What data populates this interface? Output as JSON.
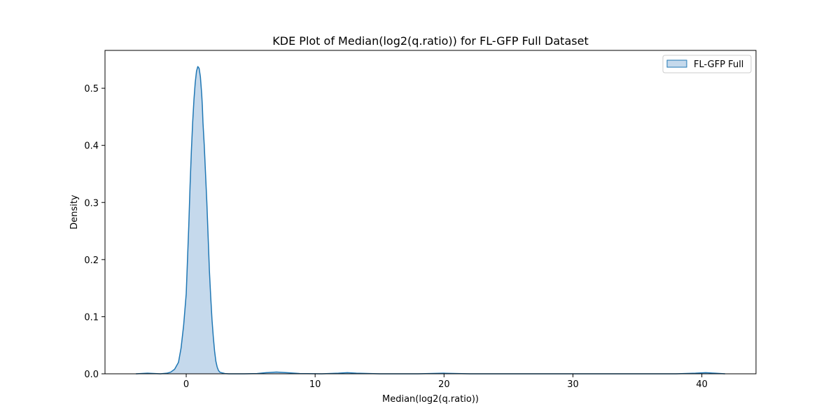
{
  "chart_data": {
    "type": "area",
    "title": "KDE Plot of Median(log2(q.ratio)) for FL-GFP Full Dataset",
    "xlabel": "Median(log2(q.ratio))",
    "ylabel": "Density",
    "xlim": [
      -6.3,
      44.2
    ],
    "ylim": [
      0,
      0.5663
    ],
    "xticks": [
      0,
      10,
      20,
      30,
      40
    ],
    "yticks": [
      0.0,
      0.1,
      0.2,
      0.3,
      0.4,
      0.5
    ],
    "xtick_labels": [
      "0",
      "10",
      "20",
      "30",
      "40"
    ],
    "ytick_labels": [
      "0.0",
      "0.1",
      "0.2",
      "0.3",
      "0.4",
      "0.5"
    ],
    "grid": false,
    "legend": {
      "position": "top-right",
      "entries": [
        "FL-GFP Full"
      ]
    },
    "colors": {
      "line": "#1f77b4",
      "fill": "#c5d9ec"
    },
    "series": [
      {
        "name": "FL-GFP Full",
        "x": [
          -3.9,
          -3.0,
          -2.0,
          -1.5,
          -1.2,
          -0.9,
          -0.6,
          -0.4,
          -0.2,
          0.0,
          0.1,
          0.2,
          0.3,
          0.4,
          0.5,
          0.6,
          0.7,
          0.8,
          0.9,
          1.0,
          1.1,
          1.2,
          1.25,
          1.3,
          1.4,
          1.5,
          1.6,
          1.7,
          1.8,
          1.9,
          2.0,
          2.1,
          2.2,
          2.3,
          2.4,
          2.5,
          2.6,
          2.8,
          3.0,
          3.3,
          3.7,
          4.5,
          5.5,
          6.2,
          7.0,
          7.8,
          8.8,
          10.5,
          11.8,
          12.5,
          13.2,
          15.0,
          18.0,
          20.0,
          22.0,
          30.0,
          38.0,
          39.5,
          40.3,
          41.0,
          41.8
        ],
        "y": [
          0.0,
          0.001,
          0.0,
          0.001,
          0.003,
          0.008,
          0.02,
          0.045,
          0.085,
          0.14,
          0.2,
          0.26,
          0.33,
          0.39,
          0.44,
          0.48,
          0.51,
          0.53,
          0.538,
          0.535,
          0.52,
          0.49,
          0.47,
          0.44,
          0.4,
          0.35,
          0.3,
          0.24,
          0.18,
          0.135,
          0.095,
          0.065,
          0.04,
          0.022,
          0.012,
          0.006,
          0.003,
          0.0015,
          0.0005,
          0.0,
          0.0,
          0.0,
          0.0005,
          0.002,
          0.003,
          0.002,
          0.0005,
          0.0,
          0.001,
          0.002,
          0.001,
          0.0,
          0.0,
          0.001,
          0.0,
          0.0,
          0.0,
          0.001,
          0.002,
          0.001,
          0.0
        ]
      }
    ]
  }
}
